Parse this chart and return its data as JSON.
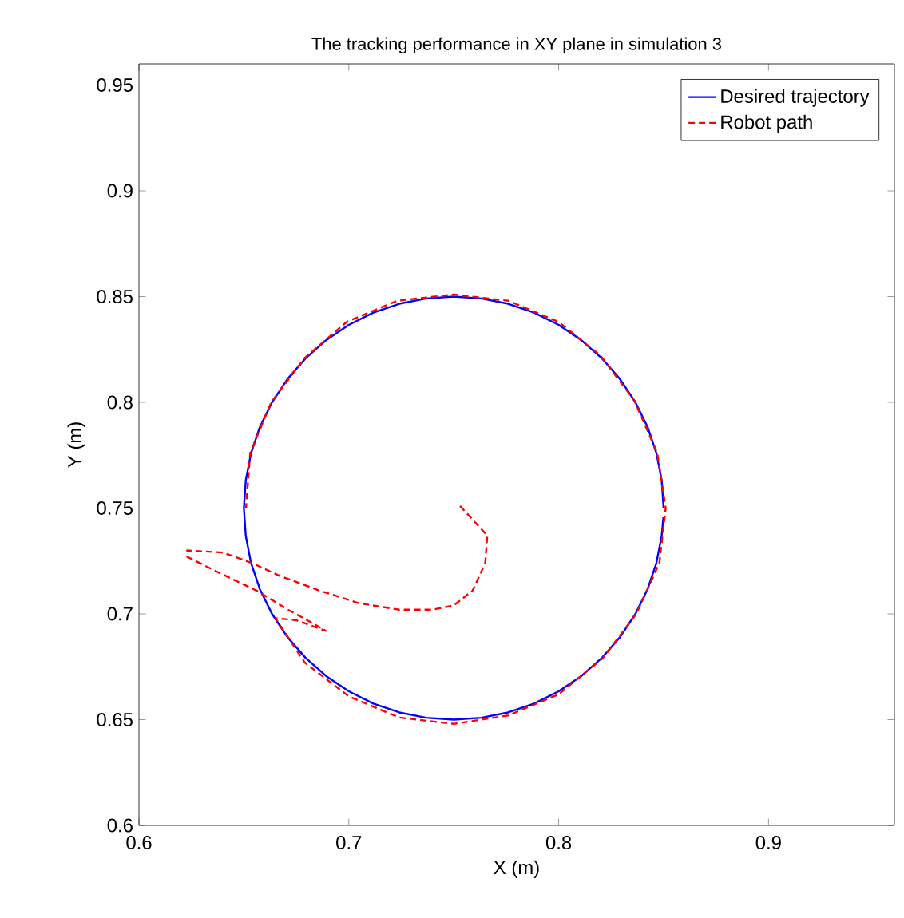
{
  "chart_data": {
    "type": "line",
    "title": "The tracking performance in XY plane in simulation 3",
    "xlabel": "X (m)",
    "ylabel": "Y (m)",
    "xlim": [
      0.6,
      0.96
    ],
    "ylim": [
      0.6,
      0.96
    ],
    "xticks": [
      {
        "value": 0.6,
        "label": "0.6"
      },
      {
        "value": 0.7,
        "label": "0.7"
      },
      {
        "value": 0.8,
        "label": "0.8"
      },
      {
        "value": 0.9,
        "label": "0.9"
      }
    ],
    "yticks": [
      {
        "value": 0.6,
        "label": "0.6"
      },
      {
        "value": 0.65,
        "label": "0.65"
      },
      {
        "value": 0.7,
        "label": "0.7"
      },
      {
        "value": 0.75,
        "label": "0.75"
      },
      {
        "value": 0.8,
        "label": "0.8"
      },
      {
        "value": 0.85,
        "label": "0.85"
      },
      {
        "value": 0.9,
        "label": "0.9"
      },
      {
        "value": 0.95,
        "label": "0.95"
      }
    ],
    "grid": false,
    "legend": "top right",
    "marker": "none",
    "series": [
      {
        "name": "Desired trajectory",
        "color": "#0000ff",
        "line_style": "solid",
        "x": [
          0.85,
          0.8491,
          0.8466,
          0.8424,
          0.8366,
          0.8293,
          0.8207,
          0.8109,
          0.8,
          0.7883,
          0.7759,
          0.7631,
          0.75,
          0.7369,
          0.7241,
          0.7117,
          0.7,
          0.6891,
          0.6793,
          0.6707,
          0.6634,
          0.6576,
          0.6534,
          0.6509,
          0.65,
          0.6509,
          0.6534,
          0.6576,
          0.6634,
          0.6707,
          0.6793,
          0.6891,
          0.7,
          0.7117,
          0.7241,
          0.7369,
          0.75,
          0.7631,
          0.7759,
          0.7883,
          0.8,
          0.8109,
          0.8207,
          0.8293,
          0.8366,
          0.8424,
          0.8466,
          0.8491,
          0.8499
        ],
        "values": [
          0.75,
          0.7631,
          0.7759,
          0.7883,
          0.8,
          0.8109,
          0.8207,
          0.8293,
          0.8366,
          0.8424,
          0.8466,
          0.8491,
          0.85,
          0.8491,
          0.8466,
          0.8424,
          0.8366,
          0.8293,
          0.8207,
          0.8109,
          0.8,
          0.7883,
          0.7759,
          0.7631,
          0.75,
          0.7369,
          0.7241,
          0.7117,
          0.7,
          0.6891,
          0.6793,
          0.6707,
          0.6634,
          0.6576,
          0.6534,
          0.6509,
          0.65,
          0.6509,
          0.6534,
          0.6576,
          0.6634,
          0.6707,
          0.6793,
          0.6891,
          0.7,
          0.7117,
          0.7241,
          0.7369,
          0.7456
        ]
      },
      {
        "name": "Robot path",
        "color": "#ff0000",
        "line_style": "dashed",
        "x": [
          0.753,
          0.766,
          0.765,
          0.759,
          0.75,
          0.74,
          0.724,
          0.705,
          0.686,
          0.667,
          0.654,
          0.64,
          0.623,
          0.623,
          0.637,
          0.656,
          0.671,
          0.682,
          0.689,
          0.675,
          0.665,
          0.679,
          0.7,
          0.724,
          0.75,
          0.776,
          0.8,
          0.821,
          0.837,
          0.848,
          0.851,
          0.847,
          0.836,
          0.82,
          0.8,
          0.776,
          0.75,
          0.723,
          0.699,
          0.679,
          0.663,
          0.653,
          0.651
        ],
        "values": [
          0.751,
          0.737,
          0.724,
          0.711,
          0.704,
          0.702,
          0.702,
          0.705,
          0.711,
          0.718,
          0.724,
          0.729,
          0.73,
          0.727,
          0.72,
          0.711,
          0.702,
          0.696,
          0.692,
          0.697,
          0.698,
          0.677,
          0.661,
          0.651,
          0.648,
          0.652,
          0.662,
          0.679,
          0.7,
          0.724,
          0.75,
          0.776,
          0.801,
          0.822,
          0.838,
          0.848,
          0.851,
          0.848,
          0.838,
          0.821,
          0.8,
          0.776,
          0.75
        ]
      }
    ]
  }
}
